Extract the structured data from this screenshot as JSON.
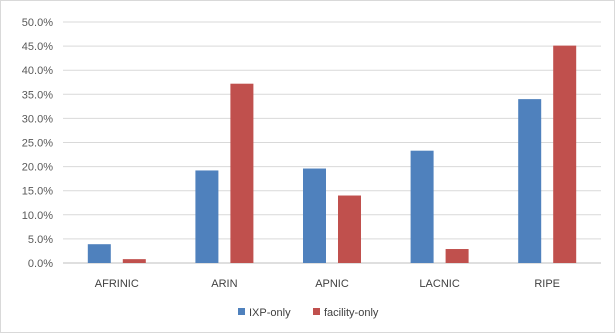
{
  "chart_data": {
    "type": "bar",
    "title": "",
    "xlabel": "",
    "ylabel": "",
    "categories": [
      "AFRINIC",
      "ARIN",
      "APNIC",
      "LACNIC",
      "RIPE"
    ],
    "series": [
      {
        "name": "IXP-only",
        "color": "#4f81bd",
        "values": [
          3.9,
          19.2,
          19.6,
          23.3,
          34.0
        ]
      },
      {
        "name": "facility-only",
        "color": "#c0504d",
        "values": [
          0.8,
          37.2,
          14.0,
          2.9,
          45.1
        ]
      }
    ],
    "ylim": [
      0,
      50
    ],
    "yticks": [
      "0.0%",
      "5.0%",
      "10.0%",
      "15.0%",
      "20.0%",
      "25.0%",
      "30.0%",
      "35.0%",
      "40.0%",
      "45.0%",
      "50.0%"
    ],
    "grid": true,
    "legend_position": "bottom"
  }
}
